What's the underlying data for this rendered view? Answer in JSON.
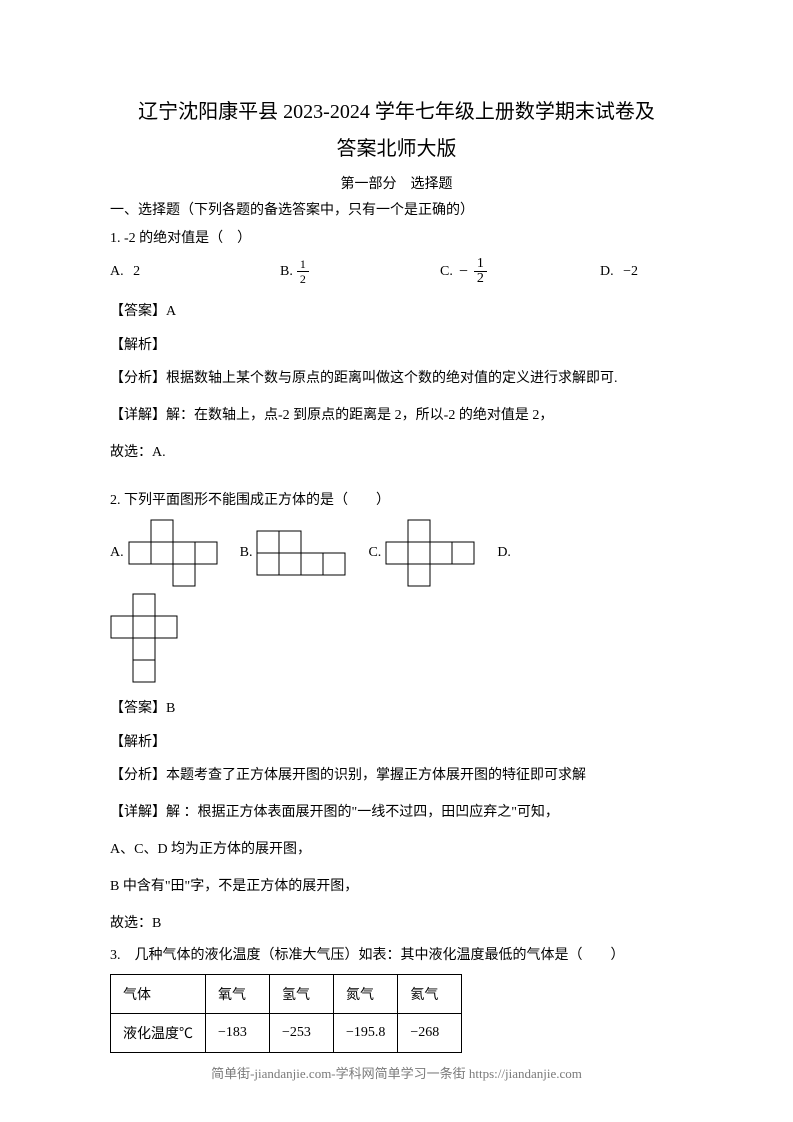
{
  "title_line1": "辽宁沈阳康平县 2023-2024 学年七年级上册数学期末试卷及",
  "title_line2": "答案北师大版",
  "part_label": "第一部分　选择题",
  "section_header": "一、选择题（下列各题的备选答案中，只有一个是正确的）",
  "q1": {
    "stem": "1.  -2 的绝对值是（　）",
    "A_label": "A.",
    "A_val": "2",
    "B_label": "B.",
    "B_num": "1",
    "B_den": "2",
    "C_label": "C.",
    "C_neg": "−",
    "C_num": "1",
    "C_den": "2",
    "D_label": "D.",
    "D_val": "−2",
    "answer": "【答案】A",
    "jiexi": "【解析】",
    "fenxi": "【分析】根据数轴上某个数与原点的距离叫做这个数的绝对值的定义进行求解即可.",
    "xiangjie": "【详解】解：在数轴上，点-2 到原点的距离是 2，所以-2 的绝对值是 2，",
    "guxuan": "故选：A."
  },
  "q2": {
    "stem": "2.  下列平面图形不能围成正方体的是（　　）",
    "A_label": "A.",
    "B_label": "B.",
    "C_label": "C.",
    "D_label": "D.",
    "answer": "【答案】B",
    "jiexi": "【解析】",
    "fenxi": "【分析】本题考查了正方体展开图的识别，掌握正方体展开图的特征即可求解",
    "xiangjie": "【详解】解 ：根据正方体表面展开图的\"一线不过四，田凹应弃之\"可知，",
    "line_acd": "A、C、D 均为正方体的展开图，",
    "line_b": "B 中含有\"田\"字，不是正方体的展开图，",
    "guxuan": "故选：B"
  },
  "q3": {
    "stem": "3.　几种气体的液化温度（标准大气压）如表：其中液化温度最低的气体是（　　）",
    "table": {
      "columns": [
        "气体",
        "氧气",
        "氢气",
        "氮气",
        "氦气"
      ],
      "row_label": "液化温度℃",
      "values": [
        "−183",
        "−253",
        "−195.8",
        "−268"
      ]
    }
  },
  "nets": {
    "cell": 22,
    "stroke": "#000000",
    "fill": "#ffffff",
    "A": [
      [
        1,
        0
      ],
      [
        0,
        1
      ],
      [
        1,
        1
      ],
      [
        2,
        1
      ],
      [
        3,
        1
      ],
      [
        2,
        2
      ]
    ],
    "B": [
      [
        0,
        0
      ],
      [
        1,
        0
      ],
      [
        0,
        1
      ],
      [
        1,
        1
      ],
      [
        2,
        1
      ],
      [
        3,
        1
      ]
    ],
    "C": [
      [
        1,
        0
      ],
      [
        0,
        1
      ],
      [
        1,
        1
      ],
      [
        2,
        1
      ],
      [
        3,
        1
      ],
      [
        1,
        2
      ]
    ],
    "D": [
      [
        1,
        0
      ],
      [
        0,
        1
      ],
      [
        1,
        1
      ],
      [
        2,
        1
      ],
      [
        1,
        2
      ],
      [
        1,
        3
      ]
    ]
  },
  "footer": "简单街-jiandanjie.com-学科网简单学习一条街 https://jiandanjie.com"
}
